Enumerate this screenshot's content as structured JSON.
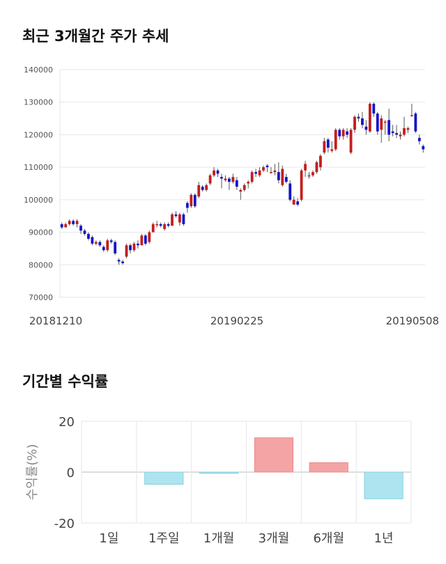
{
  "titles": {
    "price_trend": "최근 3개월간 주가 추세",
    "period_returns": "기간별 수익률"
  },
  "colors": {
    "up": "#c41e1e",
    "down": "#1515c8",
    "pos_bar": "#f4a4a4",
    "neg_bar": "#aee4f0",
    "grid": "#e6e6e6"
  },
  "chart_data": [
    {
      "type": "candlestick",
      "title": "최근 3개월간 주가 추세",
      "ylim": [
        70000,
        140000
      ],
      "yticks": [
        70000,
        80000,
        90000,
        100000,
        110000,
        120000,
        130000,
        140000
      ],
      "x_tick_labels": [
        "20181210",
        "20190225",
        "20190508"
      ],
      "grid": true,
      "ohlc": [
        [
          92500,
          93000,
          91000,
          91500
        ],
        [
          91500,
          93000,
          91500,
          92500
        ],
        [
          92500,
          94000,
          92000,
          93500
        ],
        [
          93500,
          94000,
          92000,
          92500
        ],
        [
          92500,
          94000,
          91500,
          93500
        ],
        [
          92000,
          92500,
          89500,
          90500
        ],
        [
          90500,
          91000,
          89000,
          89500
        ],
        [
          89500,
          90000,
          87500,
          88000
        ],
        [
          88500,
          89000,
          86000,
          86500
        ],
        [
          86500,
          87500,
          86000,
          87000
        ],
        [
          87000,
          87500,
          85500,
          86000
        ],
        [
          85500,
          86000,
          84000,
          84500
        ],
        [
          84500,
          88000,
          84000,
          87500
        ],
        [
          87500,
          88000,
          86500,
          87000
        ],
        [
          87000,
          87500,
          83000,
          83500
        ],
        [
          81500,
          82000,
          80000,
          81000
        ],
        [
          81000,
          81500,
          80000,
          80500
        ],
        [
          82500,
          86500,
          82000,
          86000
        ],
        [
          86000,
          86500,
          83500,
          84500
        ],
        [
          84500,
          87000,
          84000,
          86500
        ],
        [
          86500,
          87500,
          85000,
          86000
        ],
        [
          86000,
          89500,
          86000,
          89000
        ],
        [
          89000,
          89500,
          86000,
          86500
        ],
        [
          87000,
          90500,
          86500,
          90000
        ],
        [
          90000,
          93000,
          90000,
          92500
        ],
        [
          92500,
          93500,
          91500,
          92500
        ],
        [
          92500,
          93000,
          91500,
          92000
        ],
        [
          91000,
          93000,
          90500,
          92500
        ],
        [
          92500,
          93000,
          91500,
          92000
        ],
        [
          92000,
          96000,
          92000,
          95500
        ],
        [
          95500,
          96500,
          94500,
          95000
        ],
        [
          93000,
          96000,
          92000,
          95500
        ],
        [
          95500,
          96000,
          92000,
          92500
        ],
        [
          99000,
          99500,
          96000,
          97500
        ],
        [
          98000,
          102000,
          97500,
          101500
        ],
        [
          101500,
          102000,
          97500,
          98000
        ],
        [
          101000,
          105500,
          100500,
          104500
        ],
        [
          104000,
          104500,
          102500,
          103000
        ],
        [
          103000,
          105000,
          102500,
          104500
        ],
        [
          105000,
          108000,
          104500,
          107500
        ],
        [
          107500,
          110000,
          107000,
          109000
        ],
        [
          109000,
          109500,
          107000,
          108000
        ],
        [
          107000,
          108000,
          103500,
          106500
        ],
        [
          106000,
          107500,
          105500,
          106500
        ],
        [
          106500,
          107000,
          103000,
          105500
        ],
        [
          105500,
          108000,
          105000,
          107000
        ],
        [
          106000,
          107000,
          103000,
          104000
        ],
        [
          102500,
          103500,
          100000,
          103000
        ],
        [
          103000,
          105000,
          102500,
          104500
        ],
        [
          105000,
          106000,
          103500,
          105500
        ],
        [
          105500,
          109000,
          105000,
          108500
        ],
        [
          108500,
          109500,
          107000,
          108000
        ],
        [
          107500,
          110000,
          107000,
          109000
        ],
        [
          109000,
          110500,
          108500,
          110000
        ],
        [
          110500,
          111000,
          108500,
          110000
        ],
        [
          108500,
          110000,
          108000,
          108500
        ],
        [
          108500,
          111000,
          107500,
          109000
        ],
        [
          108500,
          111500,
          105000,
          106000
        ],
        [
          104500,
          110500,
          104000,
          109500
        ],
        [
          107000,
          108000,
          105000,
          105500
        ],
        [
          105000,
          106000,
          99500,
          100000
        ],
        [
          98500,
          101000,
          98500,
          100000
        ],
        [
          99500,
          100500,
          98000,
          98500
        ],
        [
          100000,
          109500,
          99500,
          109000
        ],
        [
          109000,
          112000,
          107000,
          111000
        ],
        [
          107500,
          108500,
          106500,
          107500
        ],
        [
          107500,
          109000,
          107000,
          108500
        ],
        [
          108500,
          112000,
          108000,
          111500
        ],
        [
          110000,
          114000,
          109000,
          113500
        ],
        [
          114500,
          119000,
          114000,
          118000
        ],
        [
          118500,
          119000,
          114500,
          116000
        ],
        [
          115000,
          118000,
          114500,
          115500
        ],
        [
          115500,
          122000,
          115000,
          121500
        ],
        [
          121500,
          122000,
          118500,
          119500
        ],
        [
          119500,
          122000,
          118500,
          121500
        ],
        [
          121000,
          122000,
          119000,
          120000
        ],
        [
          114500,
          122000,
          114000,
          121500
        ],
        [
          121500,
          126000,
          120500,
          125500
        ],
        [
          125500,
          126500,
          124000,
          125000
        ],
        [
          125000,
          127000,
          122000,
          123000
        ],
        [
          122500,
          124500,
          120000,
          121500
        ],
        [
          121000,
          130000,
          120500,
          129500
        ],
        [
          129500,
          130000,
          125500,
          126500
        ],
        [
          126500,
          127000,
          120000,
          121000
        ],
        [
          121500,
          126000,
          117500,
          125000
        ],
        [
          124000,
          124500,
          120000,
          124000
        ],
        [
          124500,
          128000,
          118000,
          120000
        ],
        [
          121000,
          123000,
          119500,
          120500
        ],
        [
          120500,
          123000,
          119000,
          120000
        ],
        [
          119500,
          121000,
          118500,
          120000
        ],
        [
          120000,
          125500,
          119500,
          122000
        ],
        [
          121500,
          122500,
          120500,
          122000
        ],
        [
          126000,
          129500,
          125500,
          126000
        ],
        [
          126500,
          127000,
          120500,
          121000
        ],
        [
          119000,
          120000,
          117000,
          118000
        ],
        [
          116500,
          117000,
          114500,
          115500
        ]
      ]
    },
    {
      "type": "bar",
      "categories": [
        "1일",
        "1주일",
        "1개월",
        "3개월",
        "6개월",
        "1년"
      ],
      "values": [
        0,
        -4.8,
        -0.5,
        13.5,
        3.7,
        -10.5
      ],
      "ylim": [
        -20,
        20
      ],
      "yticks": [
        20,
        0,
        -20
      ],
      "ylabel": "수익률(%)",
      "grid": true
    }
  ]
}
